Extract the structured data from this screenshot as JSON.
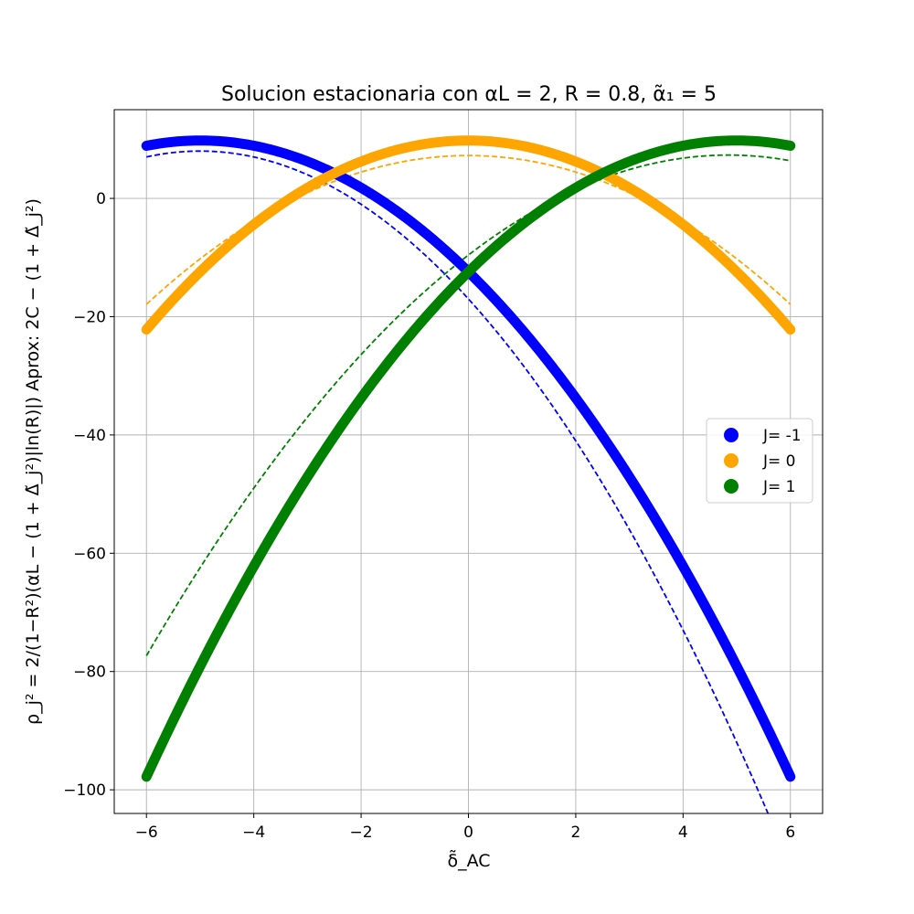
{
  "chart_data": {
    "type": "line",
    "title": "Solucion estacionaria con αL = 2, R = 0.8, α̃₁ = 5",
    "xlabel": "δ̃_AC",
    "ylabel": "ρ_j² = 2/(1−R²)(αL − (1 + Δ̃_j²)|ln(R)|)  Aprox: 2C − (1 + Δ̃_j²)",
    "xlim": [
      -6.6,
      6.6
    ],
    "ylim": [
      -104,
      15
    ],
    "xticks": [
      "−6",
      "−4",
      "−2",
      "0",
      "2",
      "4",
      "6"
    ],
    "xtick_values": [
      -6,
      -4,
      -2,
      0,
      2,
      4,
      6
    ],
    "yticks": [
      "−100",
      "−80",
      "−60",
      "−40",
      "−20",
      "0"
    ],
    "ytick_values": [
      -100,
      -80,
      -60,
      -40,
      -20,
      0
    ],
    "grid": true,
    "legend_position": "center-right",
    "x_range": [
      -6,
      6
    ],
    "series": [
      {
        "name": "J= -1",
        "color": "#0000ff",
        "style": "thick-points",
        "x": [
          -6,
          -5,
          -4,
          -3,
          -2,
          -1,
          0,
          1,
          2,
          3,
          4,
          5,
          6
        ],
        "values": [
          8.9,
          9.8,
          8.9,
          6.2,
          1.8,
          -4.4,
          -12.4,
          -22.2,
          -33.8,
          -47.1,
          -62.2,
          -79.1,
          -97.8
        ]
      },
      {
        "name": "J= 0",
        "color": "#ffa500",
        "style": "thick-points",
        "x": [
          -6,
          -5,
          -4,
          -3,
          -2,
          -1,
          0,
          1,
          2,
          3,
          4,
          5,
          6
        ],
        "values": [
          -22.2,
          -12.4,
          -4.4,
          1.8,
          6.2,
          8.9,
          9.8,
          8.9,
          6.2,
          1.8,
          -4.4,
          -12.4,
          -22.2
        ]
      },
      {
        "name": "J= 1",
        "color": "#008000",
        "style": "thick-points",
        "x": [
          -6,
          -5,
          -4,
          -3,
          -2,
          -1,
          0,
          1,
          2,
          3,
          4,
          5,
          6
        ],
        "values": [
          -97.8,
          -79.1,
          -62.2,
          -47.1,
          -33.8,
          -22.2,
          -12.4,
          -4.4,
          1.8,
          6.2,
          8.9,
          9.8,
          8.9
        ]
      },
      {
        "color": "#0000ff",
        "style": "dashed",
        "x": [
          -6,
          -5,
          -4,
          -3,
          -2,
          -1,
          0,
          1,
          2,
          3,
          4,
          5,
          6
        ],
        "values": [
          7.0,
          8.0,
          7.0,
          4.0,
          -1.0,
          -8.0,
          -17.0,
          -28.0,
          -41.0,
          -56.0,
          -73.0,
          -92.0,
          -113.0
        ]
      },
      {
        "color": "#ffa500",
        "style": "dashed",
        "x": [
          -6,
          -5,
          -4,
          -3,
          -2,
          -1,
          0,
          1,
          2,
          3,
          4,
          5,
          6
        ],
        "values": [
          -18.0,
          -10.0,
          -4.0,
          1.0,
          4.0,
          6.5,
          8.0,
          6.5,
          4.0,
          1.0,
          -4.0,
          -10.0,
          -18.0
        ]
      },
      {
        "color": "#008000",
        "style": "dashed",
        "x": [
          -6,
          -5,
          -4,
          -3,
          -2,
          -1,
          0,
          1,
          2,
          3,
          4,
          5,
          6
        ],
        "values": [
          -79.0,
          -63.0,
          -48.0,
          -35.0,
          -25.0,
          -16.5,
          -10.0,
          -4.5,
          0.0,
          3.5,
          6.5,
          8.0,
          7.5
        ]
      }
    ]
  }
}
